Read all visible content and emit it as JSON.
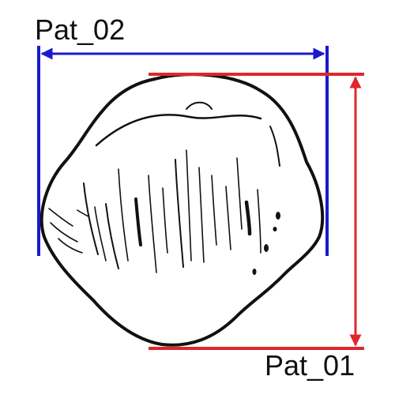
{
  "labels": {
    "width_measure": "Pat_02",
    "height_measure": "Pat_01"
  },
  "colors": {
    "width_measure": "#1a1acc",
    "height_measure": "#e0262b",
    "outline": "#111111",
    "background": "#ffffff"
  },
  "subject": {
    "icon": "patella-bone-icon"
  }
}
